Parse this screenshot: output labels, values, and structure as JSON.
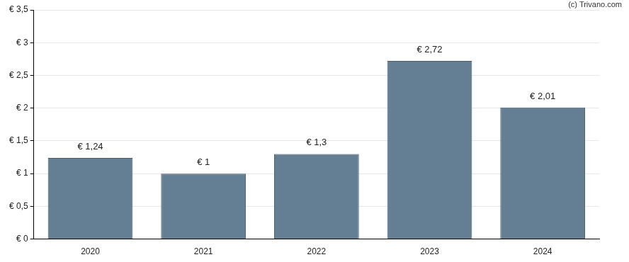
{
  "chart_data": {
    "type": "bar",
    "annotation": "(c) Trivano.com",
    "categories": [
      "2020",
      "2021",
      "2022",
      "2023",
      "2024"
    ],
    "values": [
      1.24,
      1,
      1.3,
      2.72,
      2.01
    ],
    "value_labels": [
      "€ 1,24",
      "€ 1",
      "€ 1,3",
      "€ 2,72",
      "€ 2,01"
    ],
    "data_labels": true,
    "color": "#647f93",
    "ylim": [
      0,
      3.5
    ],
    "yticks": [
      {
        "value": 0,
        "label": "€ 0"
      },
      {
        "value": 0.5,
        "label": "€ 0,5"
      },
      {
        "value": 1,
        "label": "€ 1"
      },
      {
        "value": 1.5,
        "label": "€ 1,5"
      },
      {
        "value": 2,
        "label": "€ 2"
      },
      {
        "value": 2.5,
        "label": "€ 2,5"
      },
      {
        "value": 3,
        "label": "€ 3"
      },
      {
        "value": 3.5,
        "label": "€ 3,5"
      }
    ],
    "grid": true
  }
}
